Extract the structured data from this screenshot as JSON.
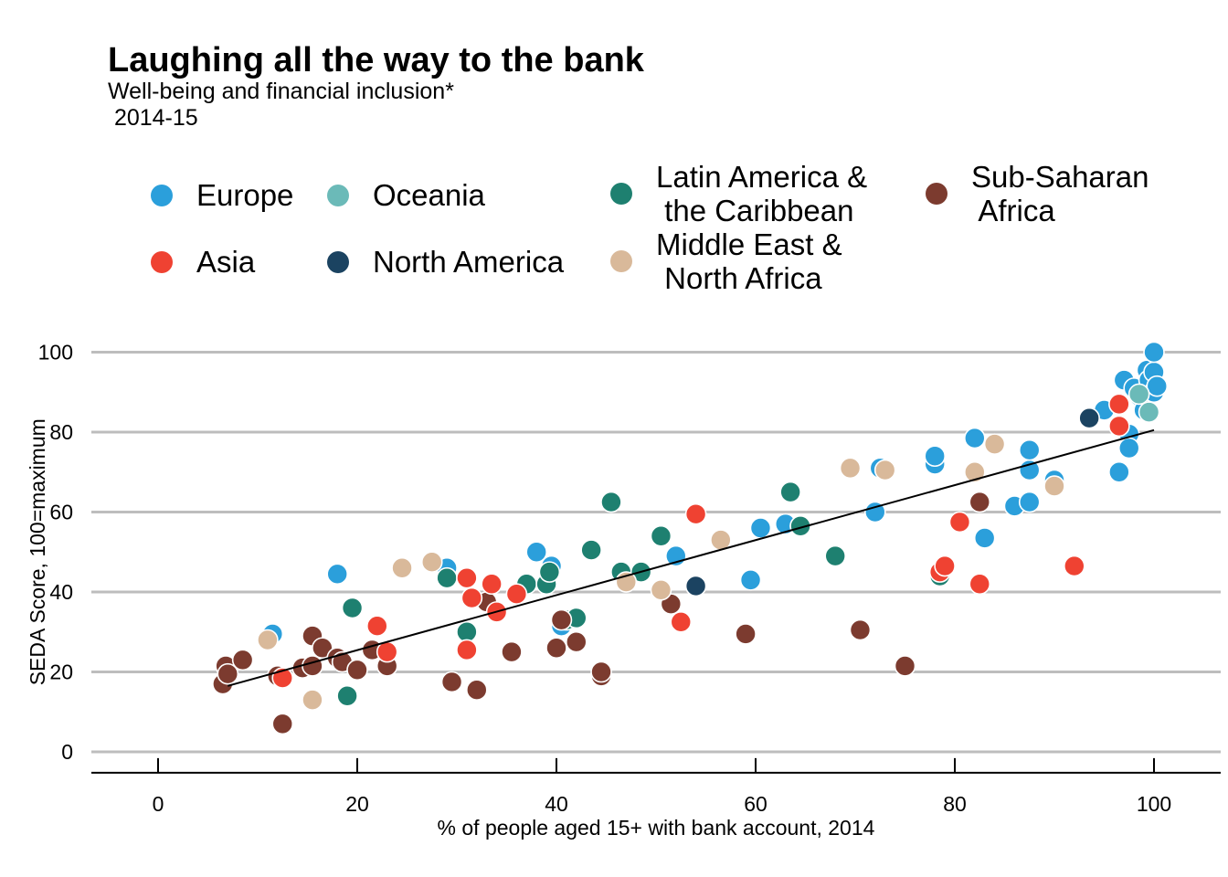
{
  "title": "Laughing all the way to the bank",
  "subtitle": "Well-being and financial inclusion*\n 2014-15",
  "legend": [
    {
      "label": "Europe",
      "color": "#2b9fdb"
    },
    {
      "label": "Oceania",
      "color": "#6bbab8"
    },
    {
      "label": "Latin America &\n the Caribbean",
      "color": "#1e8070"
    },
    {
      "label": "Sub-Saharan\n Africa",
      "color": "#7c3b2f"
    },
    {
      "label": "Asia",
      "color": "#ef4232"
    },
    {
      "label": "North America",
      "color": "#1b4361"
    },
    {
      "label": "Middle East &\n North Africa",
      "color": "#d9b99a"
    }
  ],
  "chart_data": {
    "type": "scatter",
    "title": "Laughing all the way to the bank",
    "subtitle": "Well-being and financial inclusion* 2014-15",
    "xlabel": "% of people aged 15+ with bank account, 2014",
    "ylabel": "SEDA Score, 100=maximum",
    "xlim": [
      -10,
      110
    ],
    "ylim": [
      -5,
      105
    ],
    "xticks": [
      0,
      20,
      40,
      60,
      80,
      100
    ],
    "yticks": [
      0,
      20,
      40,
      60,
      80,
      100
    ],
    "grid": "horizontal",
    "legend_position": "top",
    "trendline": {
      "x": [
        7,
        100
      ],
      "y": [
        16.5,
        80.5
      ]
    },
    "series": [
      {
        "name": "Europe",
        "color": "#2b9fdb",
        "points": [
          [
            11.5,
            29.5
          ],
          [
            18,
            44.5
          ],
          [
            29,
            46
          ],
          [
            38,
            50
          ],
          [
            39.5,
            46.5
          ],
          [
            40.5,
            31.5
          ],
          [
            52,
            49
          ],
          [
            59.5,
            43
          ],
          [
            60.5,
            56
          ],
          [
            63,
            57
          ],
          [
            64.5,
            56.5
          ],
          [
            72,
            60
          ],
          [
            72.5,
            71
          ],
          [
            78,
            72
          ],
          [
            78,
            74
          ],
          [
            82,
            78.5
          ],
          [
            83,
            53.5
          ],
          [
            86,
            61.5
          ],
          [
            87.5,
            62.5
          ],
          [
            87.5,
            70.5
          ],
          [
            87.5,
            75.5
          ],
          [
            90,
            68
          ],
          [
            95,
            85.5
          ],
          [
            96.5,
            70
          ],
          [
            97,
            93
          ],
          [
            97.5,
            79.5
          ],
          [
            97.5,
            76
          ],
          [
            98,
            91
          ],
          [
            98.5,
            89
          ],
          [
            99,
            85.5
          ],
          [
            99.3,
            95.5
          ],
          [
            99.5,
            93
          ],
          [
            100,
            95
          ],
          [
            100,
            100
          ],
          [
            100,
            90
          ],
          [
            100.3,
            91.5
          ]
        ]
      },
      {
        "name": "Oceania",
        "color": "#6bbab8",
        "points": [
          [
            99.5,
            85
          ],
          [
            98.5,
            89.5
          ]
        ]
      },
      {
        "name": "Latin America & the Caribbean",
        "color": "#1e8070",
        "points": [
          [
            19,
            14
          ],
          [
            19.5,
            36
          ],
          [
            29,
            43.5
          ],
          [
            31,
            30
          ],
          [
            37,
            42
          ],
          [
            39,
            42
          ],
          [
            39.3,
            45
          ],
          [
            41,
            33
          ],
          [
            42,
            33.5
          ],
          [
            43.5,
            50.5
          ],
          [
            45.5,
            62.5
          ],
          [
            46.5,
            45
          ],
          [
            48.5,
            45
          ],
          [
            50.5,
            54
          ],
          [
            63.5,
            65
          ],
          [
            64.5,
            56.5
          ],
          [
            68,
            49
          ],
          [
            78.5,
            44
          ]
        ]
      },
      {
        "name": "Sub-Saharan Africa",
        "color": "#7c3b2f",
        "points": [
          [
            6.5,
            17
          ],
          [
            6.8,
            21.5
          ],
          [
            7,
            19.5
          ],
          [
            8.5,
            23
          ],
          [
            12,
            19
          ],
          [
            12.5,
            7
          ],
          [
            14.5,
            21
          ],
          [
            15.5,
            29
          ],
          [
            15.5,
            21.5
          ],
          [
            16.5,
            26
          ],
          [
            18,
            23.5
          ],
          [
            18.5,
            22.5
          ],
          [
            20,
            20.5
          ],
          [
            21.5,
            25.5
          ],
          [
            23,
            21.5
          ],
          [
            29.5,
            17.5
          ],
          [
            32,
            15.5
          ],
          [
            33,
            37.5
          ],
          [
            35.5,
            25
          ],
          [
            40,
            26
          ],
          [
            40.5,
            33
          ],
          [
            42,
            27.5
          ],
          [
            44.5,
            19
          ],
          [
            44.5,
            20
          ],
          [
            51.5,
            37
          ],
          [
            59,
            29.5
          ],
          [
            70.5,
            30.5
          ],
          [
            75,
            21.5
          ],
          [
            82.5,
            62.5
          ]
        ]
      },
      {
        "name": "Asia",
        "color": "#ef4232",
        "points": [
          [
            12.5,
            18.5
          ],
          [
            22,
            31.5
          ],
          [
            23,
            25
          ],
          [
            31,
            43.5
          ],
          [
            31,
            25.5
          ],
          [
            31.5,
            38.5
          ],
          [
            33.5,
            42
          ],
          [
            34,
            35
          ],
          [
            36,
            39.5
          ],
          [
            52.5,
            32.5
          ],
          [
            54,
            59.5
          ],
          [
            80.5,
            57.5
          ],
          [
            78.5,
            45
          ],
          [
            79,
            46.5
          ],
          [
            82.5,
            42
          ],
          [
            92,
            46.5
          ],
          [
            96.5,
            87
          ],
          [
            96.5,
            81.5
          ]
        ]
      },
      {
        "name": "North America",
        "color": "#1b4361",
        "points": [
          [
            54,
            41.5
          ],
          [
            93.5,
            83.5
          ]
        ]
      },
      {
        "name": "Middle East & North Africa",
        "color": "#d9b99a",
        "points": [
          [
            11,
            28
          ],
          [
            15.5,
            13
          ],
          [
            24.5,
            46
          ],
          [
            27.5,
            47.5
          ],
          [
            47,
            42.5
          ],
          [
            50.5,
            40.5
          ],
          [
            56.5,
            53
          ],
          [
            69.5,
            71
          ],
          [
            73,
            70.5
          ],
          [
            82,
            70
          ],
          [
            84,
            77
          ],
          [
            90,
            66.5
          ]
        ]
      }
    ]
  }
}
